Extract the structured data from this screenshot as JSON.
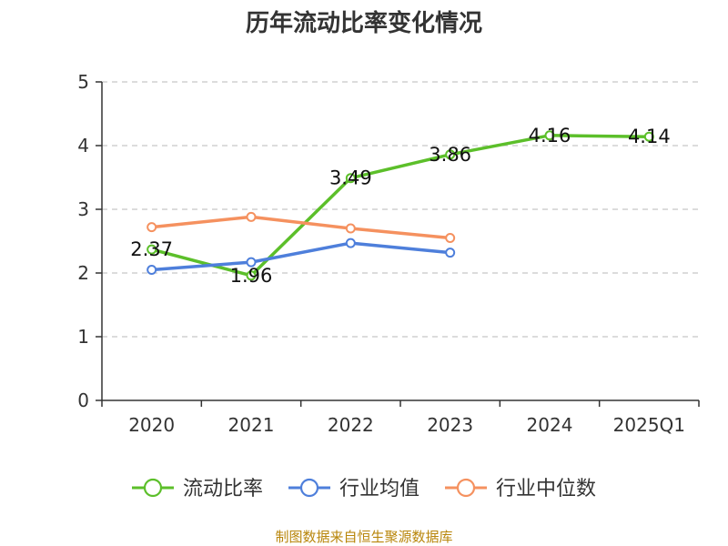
{
  "chart_data": {
    "type": "line",
    "title": "历年流动比率变化情况",
    "categories": [
      "2020",
      "2021",
      "2022",
      "2023",
      "2024",
      "2025Q1"
    ],
    "ylim": [
      0,
      5
    ],
    "yticks": [
      0,
      1,
      2,
      3,
      4,
      5
    ],
    "grid": true,
    "legend_position": "bottom",
    "series": [
      {
        "name": "流动比率",
        "color": "#5cbf2a",
        "values": [
          2.37,
          1.96,
          3.49,
          3.86,
          4.16,
          4.14
        ],
        "labels": [
          "2.37",
          "1.96",
          "3.49",
          "3.86",
          "4.16",
          "4.14"
        ]
      },
      {
        "name": "行业均值",
        "color": "#4e7fdb",
        "values": [
          2.05,
          2.17,
          2.47,
          2.32,
          null,
          null
        ]
      },
      {
        "name": "行业中位数",
        "color": "#f5915f",
        "values": [
          2.72,
          2.88,
          2.7,
          2.55,
          null,
          null
        ]
      }
    ]
  },
  "source": "制图数据来自恒生聚源数据库"
}
